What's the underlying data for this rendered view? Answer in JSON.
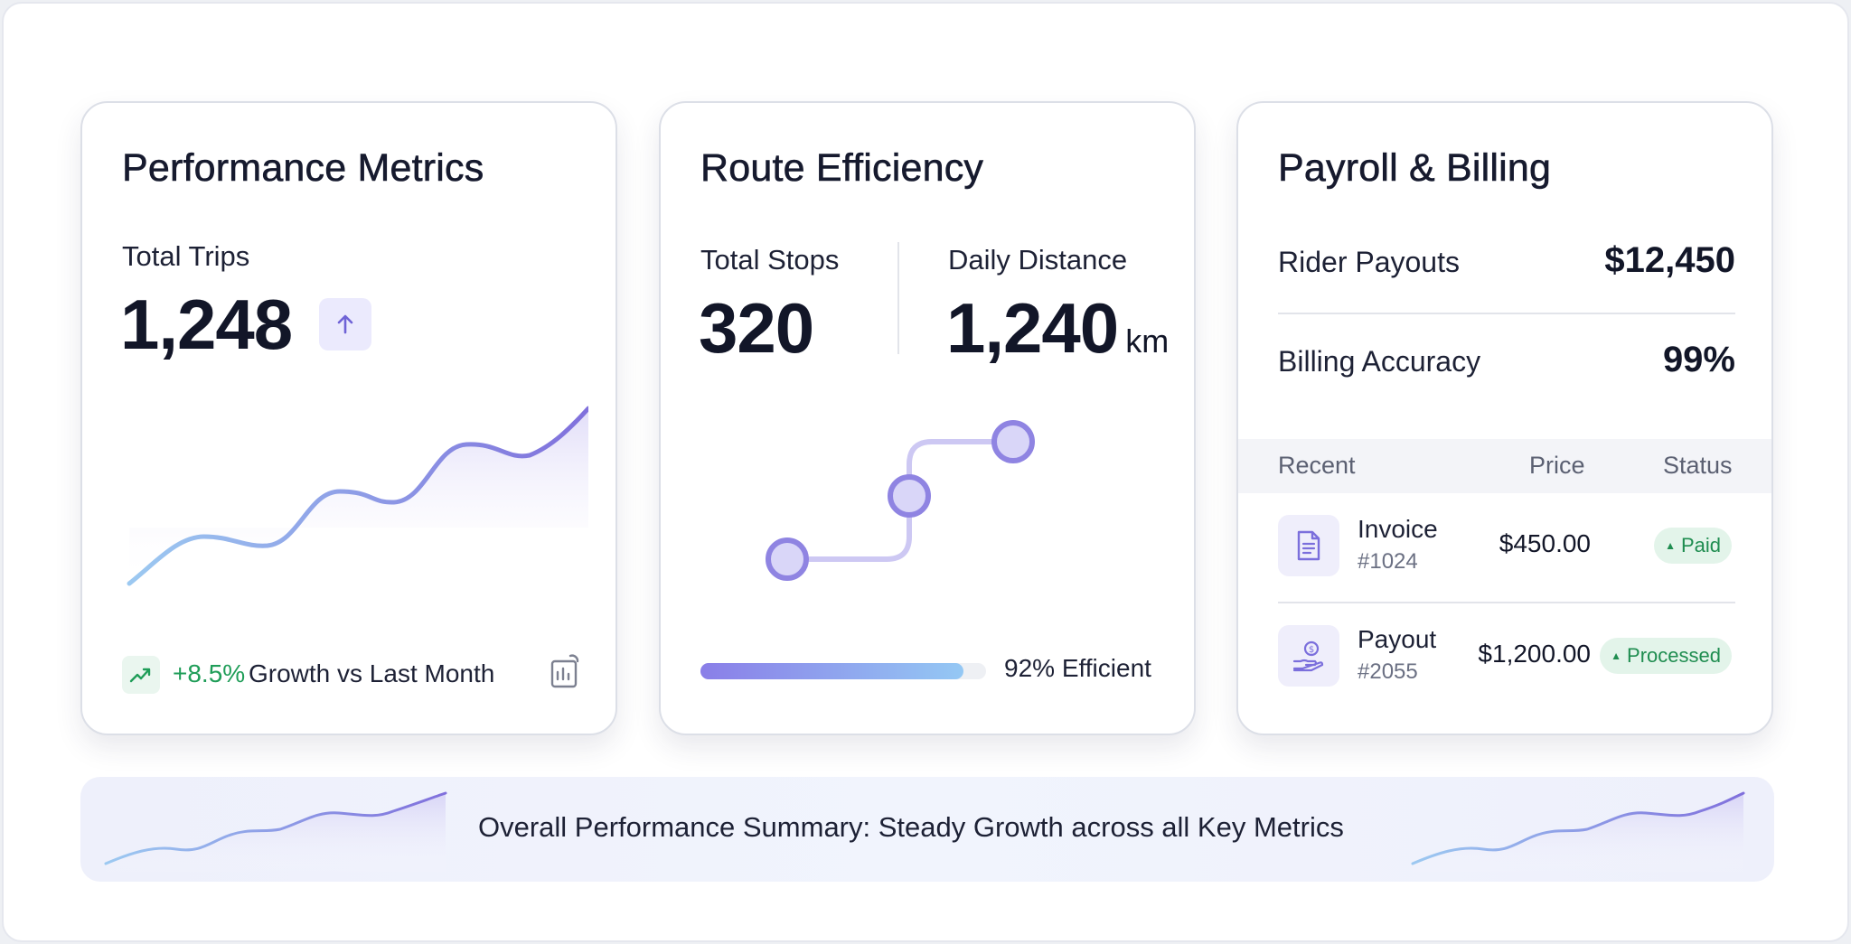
{
  "performance": {
    "title": "Performance Metrics",
    "trips_label": "Total Trips",
    "trips_value": "1,248",
    "trend_icon": "arrow-up-icon",
    "growth_pct": "+8.5%",
    "growth_text": "Growth vs Last Month",
    "growth_icon": "trending-up-icon",
    "report_icon": "report-icon"
  },
  "route": {
    "title": "Route Efficiency",
    "stops_label": "Total Stops",
    "stops_value": "320",
    "distance_label": "Daily Distance",
    "distance_value": "1,240",
    "distance_unit": "km",
    "efficiency_pct": 92,
    "efficiency_label": "92% Efficient"
  },
  "payroll": {
    "title": "Payroll & Billing",
    "rider_payouts_label": "Rider Payouts",
    "rider_payouts_value": "$12,450",
    "billing_accuracy_label": "Billing Accuracy",
    "billing_accuracy_value": "99%",
    "table": {
      "headers": [
        "Recent",
        "Price",
        "Status"
      ],
      "rows": [
        {
          "name": "Invoice",
          "id": "#1024",
          "price": "$450.00",
          "status": "Paid",
          "icon": "document-icon"
        },
        {
          "name": "Payout",
          "id": "#2055",
          "price": "$1,200.00",
          "status": "Processed",
          "icon": "hand-coin-icon"
        }
      ]
    }
  },
  "summary": {
    "text": "Overall Performance Summary: Steady Growth across all Key Metrics"
  },
  "colors": {
    "accent": "#7b6fdc",
    "accent_light": "#94c8f4",
    "positive": "#1f9d58",
    "badge_bg": "#e3f4ea"
  }
}
